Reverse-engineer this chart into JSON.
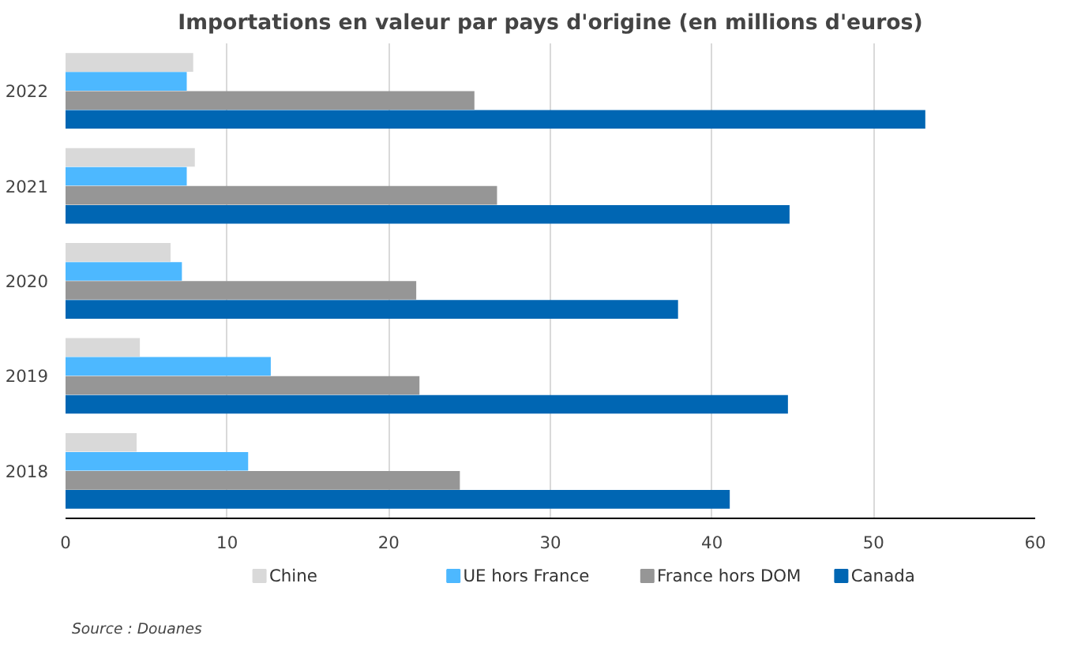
{
  "chart_data": {
    "type": "bar",
    "orientation": "horizontal",
    "title": "Importations en valeur par pays d'origine (en millions d'euros)",
    "categories": [
      "2022",
      "2021",
      "2020",
      "2019",
      "2018"
    ],
    "series": [
      {
        "name": "Chine",
        "color": "#d9d9d9",
        "values": [
          7.9,
          8.0,
          6.5,
          4.6,
          4.4
        ]
      },
      {
        "name": "UE hors France",
        "color": "#4db8ff",
        "values": [
          7.5,
          7.5,
          7.2,
          12.7,
          11.3
        ]
      },
      {
        "name": "France hors DOM",
        "color": "#969696",
        "values": [
          25.3,
          26.7,
          21.7,
          21.9,
          24.4
        ]
      },
      {
        "name": "Canada",
        "color": "#0066b3",
        "values": [
          53.2,
          44.8,
          37.9,
          44.7,
          41.1
        ]
      }
    ],
    "xlim": [
      0,
      60
    ],
    "xticks": [
      0,
      10,
      20,
      30,
      40,
      50,
      60
    ],
    "grid": "x",
    "legend": "bottom",
    "annotations": [
      "Source : Douanes"
    ]
  }
}
